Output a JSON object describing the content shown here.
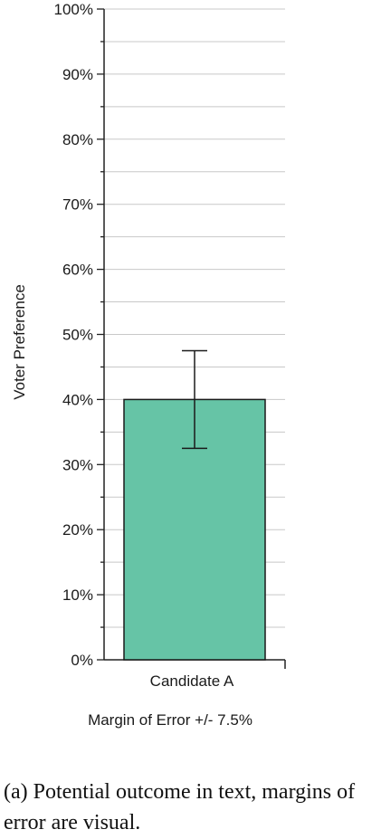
{
  "chart_data": {
    "type": "bar",
    "categories": [
      "Candidate A"
    ],
    "values": [
      40
    ],
    "error": [
      7.5
    ],
    "ylabel": "Voter Preference",
    "xlabel": "Margin of Error +/- 7.5%",
    "ylim": [
      0,
      100
    ],
    "y_ticks": [
      "0%",
      "10%",
      "20%",
      "30%",
      "40%",
      "50%",
      "60%",
      "70%",
      "80%",
      "90%",
      "100%"
    ],
    "grid": true,
    "bar_color": "#66c4a6"
  },
  "caption": "(a) Potential outcome in text, margins of error are visual."
}
